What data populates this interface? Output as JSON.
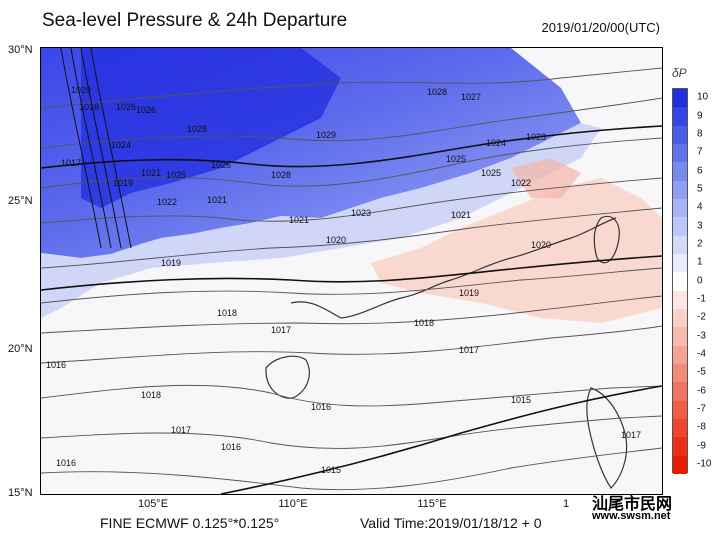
{
  "header": {
    "title": "Sea-level Pressure & 24h Departure",
    "timestamp": "2019/01/20/00(UTC)"
  },
  "axes": {
    "y_ticks": [
      "30°N",
      "25°N",
      "20°N",
      "15°N"
    ],
    "x_ticks": [
      "105°E",
      "110°E",
      "115°E",
      "1"
    ]
  },
  "colorbar": {
    "title": "δP",
    "labels": [
      "10",
      "9",
      "8",
      "7",
      "6",
      "5",
      "4",
      "3",
      "2",
      "1",
      "0",
      "-1",
      "-2",
      "-3",
      "-4",
      "-5",
      "-6",
      "-7",
      "-8",
      "-9",
      "-10"
    ],
    "colors": [
      "#1f2fe0",
      "#3447e6",
      "#4a5eea",
      "#6174ed",
      "#788af0",
      "#8f9ff3",
      "#a6b3f5",
      "#bcc6f8",
      "#d3daf9",
      "#e9ecfb",
      "#ffffff",
      "#fde6e2",
      "#fbd0c8",
      "#f9b9ae",
      "#f6a294",
      "#f48b7a",
      "#f17461",
      "#ef5d48",
      "#ec462f",
      "#ea2f17",
      "#e81b04"
    ]
  },
  "isobar_labels": [
    "1028",
    "1027",
    "1026",
    "1028",
    "1029",
    "1025",
    "1024",
    "1023",
    "1022",
    "1021",
    "1020",
    "1019",
    "1018",
    "1017",
    "1016",
    "1015",
    "1020",
    "1018",
    "1026",
    "1024",
    "1021",
    "1017",
    "1019",
    "1022",
    "1025",
    "1026",
    "1021",
    "1028",
    "1023",
    "1021",
    "1020",
    "1025",
    "1019",
    "1018",
    "1017",
    "1016",
    "1015",
    "1017",
    "1016",
    "1018",
    "1017",
    "1016"
  ],
  "footer": {
    "model": "FINE ECMWF 0.125°*0.125°",
    "valid_time": "Valid Time:2019/01/18/12 + 0"
  },
  "watermark": {
    "logo_text": "汕尾市民网",
    "site": "www.swsm.net"
  }
}
